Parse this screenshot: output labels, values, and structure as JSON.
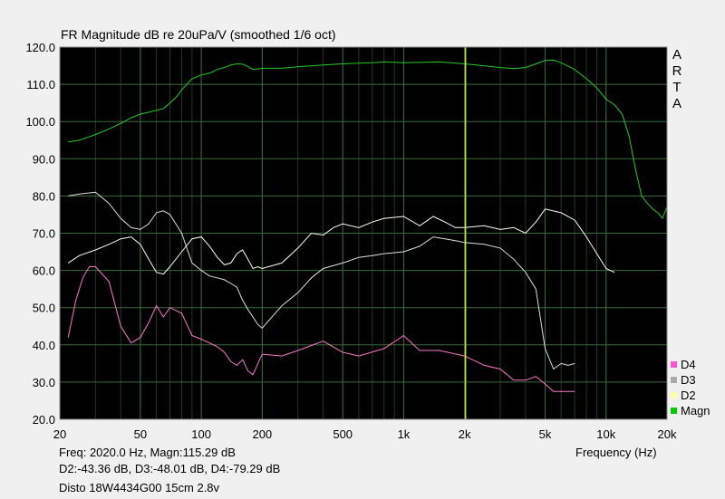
{
  "chart_data": {
    "type": "line",
    "title": "FR Magnitude dB re 20uPa/V (smoothed 1/6 oct)",
    "xlabel": "Frequency (Hz)",
    "ylabel": "",
    "x_scale": "log",
    "xlim": [
      20,
      20000
    ],
    "ylim": [
      20,
      120
    ],
    "x_ticks": [
      20,
      50,
      100,
      200,
      500,
      1000,
      2000,
      5000,
      10000,
      20000
    ],
    "x_tick_labels": [
      "20",
      "50",
      "100",
      "200",
      "500",
      "1k",
      "2k",
      "5k",
      "10k",
      "20k"
    ],
    "y_ticks": [
      20,
      30,
      40,
      50,
      60,
      70,
      80,
      90,
      100,
      110,
      120
    ],
    "y_tick_labels": [
      "20.0",
      "30.0",
      "40.0",
      "50.0",
      "60.0",
      "70.0",
      "80.0",
      "90.0",
      "100.0",
      "110.0",
      "120.0"
    ],
    "grid": true,
    "legend_position": "bottom-right",
    "cursor_frequency": 2020,
    "background": "#000000",
    "grid_color": "#3a6a3a",
    "series": [
      {
        "name": "Magn",
        "color": "#22cc22",
        "x": [
          22,
          25,
          30,
          35,
          40,
          45,
          50,
          55,
          60,
          65,
          70,
          75,
          80,
          90,
          100,
          110,
          120,
          130,
          140,
          150,
          160,
          170,
          180,
          200,
          250,
          300,
          400,
          500,
          600,
          700,
          800,
          1000,
          1200,
          1500,
          1700,
          2000,
          2500,
          3000,
          3500,
          4000,
          4500,
          5000,
          5500,
          6000,
          7000,
          8000,
          9000,
          10000,
          11000,
          12000,
          13000,
          14000,
          15000,
          16000,
          17000,
          18000,
          19000,
          20000
        ],
        "y": [
          94.5,
          95,
          96.5,
          98,
          99.5,
          101,
          102,
          102.5,
          103,
          103.5,
          105,
          106.5,
          108.5,
          111.5,
          112.5,
          113,
          114,
          114.5,
          115.2,
          115.5,
          115.4,
          114.8,
          114,
          114.3,
          114.3,
          114.7,
          115.2,
          115.5,
          115.7,
          115.8,
          116,
          115.8,
          115.9,
          116,
          115.8,
          115.5,
          115,
          114.5,
          114.2,
          114.5,
          115.5,
          116.4,
          116.5,
          115.8,
          114,
          111.5,
          109,
          106,
          104.5,
          102,
          96,
          87,
          80,
          78,
          76.5,
          75.5,
          74,
          77
        ]
      },
      {
        "name": "D2",
        "color": "#ffffee",
        "x": [
          22,
          25,
          30,
          35,
          40,
          45,
          50,
          55,
          60,
          65,
          70,
          80,
          90,
          100,
          110,
          120,
          130,
          140,
          150,
          160,
          170,
          180,
          190,
          200,
          250,
          300,
          350,
          400,
          450,
          500,
          600,
          700,
          800,
          1000,
          1200,
          1400,
          1600,
          1800,
          2000,
          2500,
          3000,
          3500,
          4000,
          4500,
          5000,
          6000,
          7000,
          8000,
          9000,
          10000,
          11000
        ],
        "y": [
          62,
          64,
          65.5,
          67,
          68.5,
          69,
          67,
          63,
          59.5,
          59,
          61,
          65,
          68.5,
          69,
          66.5,
          63.5,
          61.5,
          62,
          64.5,
          65.5,
          63,
          60.5,
          61,
          60.5,
          62,
          66,
          70,
          69.5,
          71.5,
          72.5,
          71.5,
          73,
          74,
          74.5,
          72,
          74.5,
          73,
          71.5,
          71.5,
          72,
          71,
          71.5,
          70,
          73,
          76.5,
          75.5,
          73.5,
          69,
          64.5,
          60.5,
          59.5
        ]
      },
      {
        "name": "D3",
        "color": "#dddddd",
        "x": [
          22,
          25,
          30,
          35,
          40,
          45,
          50,
          55,
          60,
          65,
          70,
          80,
          90,
          100,
          110,
          120,
          130,
          140,
          150,
          160,
          170,
          180,
          190,
          200,
          250,
          300,
          350,
          400,
          500,
          600,
          700,
          800,
          1000,
          1200,
          1400,
          1600,
          1800,
          2000,
          2500,
          3000,
          3500,
          4000,
          4500,
          5000,
          5500,
          6000,
          6500,
          7000
        ],
        "y": [
          80,
          80.5,
          81,
          78,
          74,
          71.5,
          71,
          72.5,
          75.5,
          76,
          75,
          70,
          62,
          60,
          58.5,
          58,
          57.5,
          56.5,
          55.5,
          52,
          49.5,
          47.5,
          45.5,
          44.5,
          50.5,
          54,
          58,
          60.5,
          62,
          63.5,
          64,
          64.5,
          65,
          66.5,
          69,
          68.5,
          68,
          67.5,
          67,
          66,
          63,
          59.5,
          55,
          39,
          33.5,
          35,
          34.5,
          35
        ]
      },
      {
        "name": "D4",
        "color": "#ff77cc",
        "x": [
          22,
          24,
          26,
          28,
          30,
          35,
          40,
          45,
          50,
          55,
          60,
          65,
          70,
          80,
          90,
          100,
          110,
          120,
          130,
          140,
          150,
          160,
          170,
          180,
          200,
          250,
          300,
          400,
          500,
          600,
          800,
          1000,
          1200,
          1500,
          2000,
          2500,
          3000,
          3500,
          4000,
          4500,
          5000,
          5500,
          6000,
          7000
        ],
        "y": [
          42,
          52,
          58,
          61,
          61,
          57,
          45,
          40.5,
          42,
          46,
          50.5,
          47.5,
          50,
          48.5,
          42.5,
          41.5,
          40.5,
          39.5,
          38,
          35.5,
          34.5,
          36,
          33,
          32,
          37.5,
          37,
          38.5,
          41,
          38,
          37,
          39,
          42.5,
          38.5,
          38.5,
          37,
          34.5,
          33.5,
          30.5,
          30.5,
          31.5,
          29.5,
          27.5,
          27.5,
          27.5
        ]
      }
    ]
  },
  "arta_label": [
    "A",
    "R",
    "T",
    "A"
  ],
  "info": {
    "line1": "Freq: 2020.0 Hz, Magn:115.29 dB",
    "line2": "D2:-43.36 dB, D3:-48.01 dB, D4:-79.29 dB",
    "line3": "Disto 18W4434G00 15cm 2.8v"
  },
  "legend": [
    {
      "label": "D4",
      "color": "#ff55cc"
    },
    {
      "label": "D3",
      "color": "#aaaaaa"
    },
    {
      "label": "D2",
      "color": "#ffffaa"
    },
    {
      "label": "Magn",
      "color": "#00cc00"
    }
  ]
}
